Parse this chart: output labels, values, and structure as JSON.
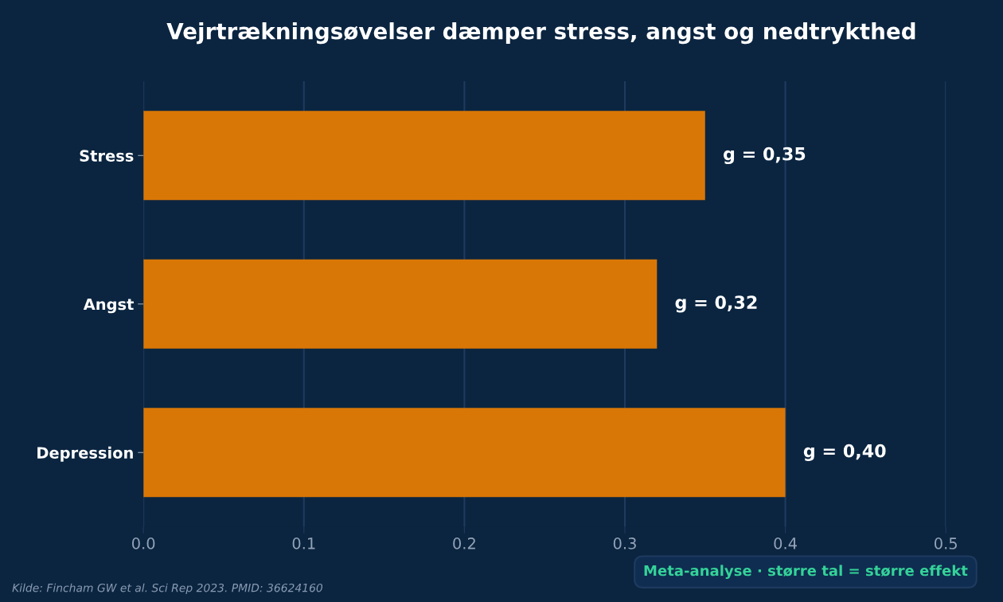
{
  "chart_data": {
    "type": "bar",
    "orientation": "horizontal",
    "title": "Vejrtrækningsøvelser dæmper stress, angst og nedtrykthed",
    "categories": [
      "Stress",
      "Angst",
      "Depression"
    ],
    "values": [
      0.35,
      0.32,
      0.4
    ],
    "value_labels": [
      "g = 0,35",
      "g = 0,32",
      "g = 0,40"
    ],
    "color": "#d97706",
    "xlim": [
      0,
      0.5
    ],
    "xticks": [
      {
        "value": 0,
        "label": "0.0"
      },
      0.1,
      0.2,
      0.3,
      0.4,
      0.5
    ],
    "grid": "x",
    "legend": false,
    "annotations": [
      "Meta-analyse · større tal = større effekt",
      "Kilde: Fincham GW et al. Sci Rep 2023. PMID: 36624160"
    ]
  }
}
